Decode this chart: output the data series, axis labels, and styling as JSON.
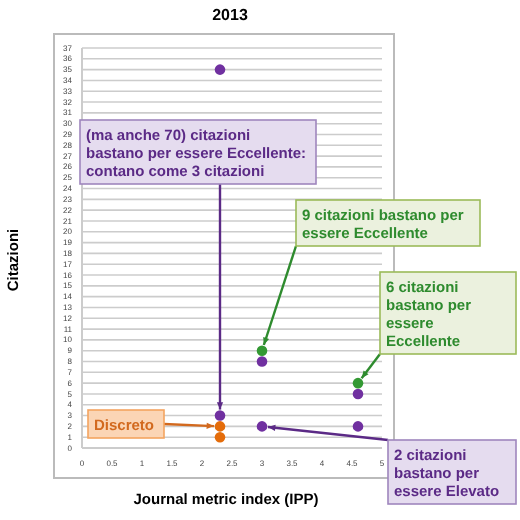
{
  "chart_data": {
    "type": "scatter",
    "title": "2013",
    "xlabel": "Journal metric index (IPP)",
    "ylabel": "Citazioni",
    "xlim": [
      0,
      5
    ],
    "xticks": [
      0,
      0.5,
      1,
      1.5,
      2,
      2.5,
      3,
      3.5,
      4,
      4.5,
      5
    ],
    "ylim": [
      0,
      37
    ],
    "yticks": [
      0,
      1,
      2,
      3,
      4,
      5,
      6,
      7,
      8,
      9,
      10,
      11,
      12,
      13,
      14,
      15,
      16,
      17,
      18,
      19,
      20,
      21,
      22,
      23,
      24,
      25,
      26,
      27,
      28,
      29,
      30,
      31,
      32,
      33,
      34,
      35,
      36,
      37
    ],
    "grid": "y",
    "marker": "circle",
    "series": [
      {
        "color": "#7030a0",
        "x": [
          2.3,
          2.3,
          3.0,
          3.0,
          4.6,
          4.6
        ],
        "values": [
          35,
          3,
          8,
          2,
          5,
          2
        ]
      },
      {
        "color": "#339933",
        "x": [
          3.0,
          4.6
        ],
        "values": [
          9,
          6
        ]
      },
      {
        "color": "#e46c0a",
        "x": [
          2.3,
          2.3
        ],
        "values": [
          2,
          1
        ]
      }
    ],
    "annotations": [
      {
        "text": "(ma anche 70) citazioni bastano per essere Eccellente: contano come 3 citazioni",
        "x": 2.3,
        "y": 3
      },
      {
        "text": "9 citazioni bastano per essere Eccellente",
        "x": 3.0,
        "y": 9
      },
      {
        "text": "6 citazioni bastano per essere Eccellente",
        "x": 4.6,
        "y": 6
      },
      {
        "text": "Discreto",
        "x": 2.3,
        "y": 2
      },
      {
        "text": "2 citazioni bastano per essere Elevato",
        "x": 3.0,
        "y": 2
      }
    ]
  }
}
